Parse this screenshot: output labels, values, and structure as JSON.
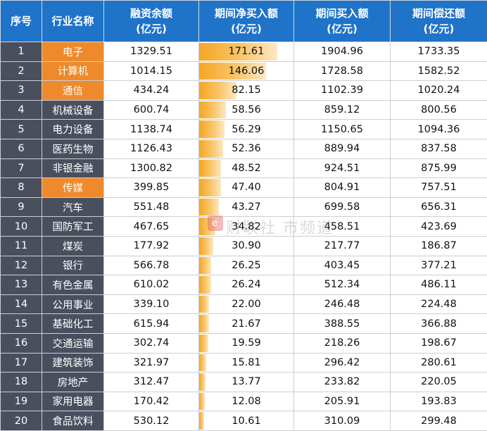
{
  "headers": [
    "序号",
    "行业名称",
    "融资余额\n(亿元)",
    "期间净买入额\n(亿元)",
    "期间买入额\n(亿元)",
    "期间偿还额\n(亿元)"
  ],
  "watermark": "财联社 市频道",
  "colors": {
    "header_bg": "#1f73c8",
    "row_label_bg": "#4a4f5e",
    "highlight_bg": "#ee8a2b",
    "bar": "#f5a623"
  },
  "rows": [
    {
      "idx": "1",
      "name": "电子",
      "hl": true,
      "balance": "1329.51",
      "net": "171.61",
      "buy": "1904.96",
      "repay": "1733.35"
    },
    {
      "idx": "2",
      "name": "计算机",
      "hl": true,
      "balance": "1014.15",
      "net": "146.06",
      "buy": "1728.58",
      "repay": "1582.52"
    },
    {
      "idx": "3",
      "name": "通信",
      "hl": true,
      "balance": "434.24",
      "net": "82.15",
      "buy": "1102.39",
      "repay": "1020.24"
    },
    {
      "idx": "4",
      "name": "机械设备",
      "hl": false,
      "balance": "600.74",
      "net": "58.56",
      "buy": "859.12",
      "repay": "800.56"
    },
    {
      "idx": "5",
      "name": "电力设备",
      "hl": false,
      "balance": "1138.74",
      "net": "56.29",
      "buy": "1150.65",
      "repay": "1094.36"
    },
    {
      "idx": "6",
      "name": "医药生物",
      "hl": false,
      "balance": "1126.43",
      "net": "52.36",
      "buy": "889.94",
      "repay": "837.58"
    },
    {
      "idx": "7",
      "name": "非银金融",
      "hl": false,
      "balance": "1300.82",
      "net": "48.52",
      "buy": "924.51",
      "repay": "875.99"
    },
    {
      "idx": "8",
      "name": "传媒",
      "hl": true,
      "balance": "399.85",
      "net": "47.40",
      "buy": "804.91",
      "repay": "757.51"
    },
    {
      "idx": "9",
      "name": "汽车",
      "hl": false,
      "balance": "551.48",
      "net": "43.27",
      "buy": "699.58",
      "repay": "656.31"
    },
    {
      "idx": "10",
      "name": "国防军工",
      "hl": false,
      "balance": "467.65",
      "net": "34.82",
      "buy": "458.51",
      "repay": "423.69"
    },
    {
      "idx": "11",
      "name": "煤炭",
      "hl": false,
      "balance": "177.92",
      "net": "30.90",
      "buy": "217.77",
      "repay": "186.87"
    },
    {
      "idx": "12",
      "name": "银行",
      "hl": false,
      "balance": "566.78",
      "net": "26.25",
      "buy": "403.45",
      "repay": "377.21"
    },
    {
      "idx": "13",
      "name": "有色金属",
      "hl": false,
      "balance": "610.02",
      "net": "26.24",
      "buy": "512.34",
      "repay": "486.11"
    },
    {
      "idx": "14",
      "name": "公用事业",
      "hl": false,
      "balance": "339.10",
      "net": "22.00",
      "buy": "246.48",
      "repay": "224.48"
    },
    {
      "idx": "15",
      "name": "基础化工",
      "hl": false,
      "balance": "615.94",
      "net": "21.67",
      "buy": "388.55",
      "repay": "366.88"
    },
    {
      "idx": "16",
      "name": "交通运输",
      "hl": false,
      "balance": "302.74",
      "net": "19.59",
      "buy": "218.26",
      "repay": "198.67"
    },
    {
      "idx": "17",
      "name": "建筑装饰",
      "hl": false,
      "balance": "321.97",
      "net": "15.81",
      "buy": "296.42",
      "repay": "280.61"
    },
    {
      "idx": "18",
      "name": "房地产",
      "hl": false,
      "balance": "312.47",
      "net": "13.77",
      "buy": "233.82",
      "repay": "220.05"
    },
    {
      "idx": "19",
      "name": "家用电器",
      "hl": false,
      "balance": "170.42",
      "net": "12.08",
      "buy": "205.91",
      "repay": "193.83"
    },
    {
      "idx": "20",
      "name": "食品饮料",
      "hl": false,
      "balance": "530.12",
      "net": "10.61",
      "buy": "310.09",
      "repay": "299.48"
    }
  ]
}
